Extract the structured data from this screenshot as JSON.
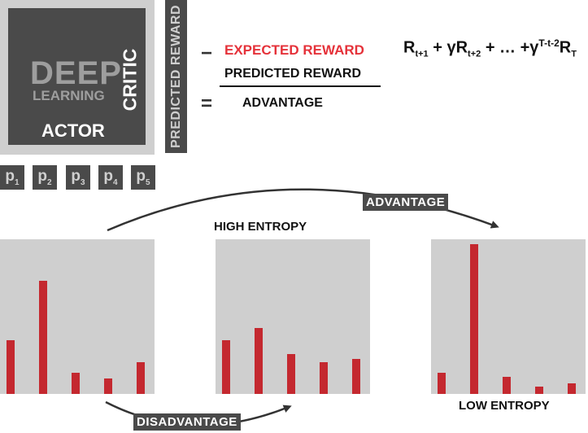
{
  "network": {
    "title_line1": "DEEP",
    "title_line2": "LEARNING",
    "actor": "ACTOR",
    "critic": "CRITIC",
    "predicted_reward_label": "PREDICTED REWARD"
  },
  "equation": {
    "minus": "−",
    "expected": "EXPECTED REWARD",
    "predicted": "PREDICTED REWARD",
    "equals": "=",
    "advantage": "ADVANTAGE",
    "formula": {
      "t1": "R",
      "s1": "t+1",
      "plus1": " + γR",
      "s2": "t+2",
      "mid": "+ … +γ",
      "sup": "T-t-2",
      "tail": "R",
      "s3": "T"
    }
  },
  "policy_labels": [
    {
      "p": "p",
      "i": "1"
    },
    {
      "p": "p",
      "i": "2"
    },
    {
      "p": "p",
      "i": "3"
    },
    {
      "p": "p",
      "i": "4"
    },
    {
      "p": "p",
      "i": "5"
    }
  ],
  "arrows": {
    "advantage": "ADVANTAGE",
    "disadvantage": "DISADVANTAGE"
  },
  "captions": {
    "high_entropy": "HIGH ENTROPY",
    "low_entropy": "LOW ENTROPY"
  },
  "colors": {
    "bar": "#c4282f",
    "panel": "#cfcfcf",
    "dark": "#4a4a4a",
    "expected": "#e5323a"
  },
  "chart_data": [
    {
      "type": "bar",
      "categories": [
        "p1",
        "p2",
        "p3",
        "p4",
        "p5"
      ],
      "values": [
        0.35,
        0.74,
        0.14,
        0.1,
        0.21
      ],
      "ylim": [
        0,
        1
      ]
    },
    {
      "type": "bar",
      "categories": [
        "p1",
        "p2",
        "p3",
        "p4",
        "p5"
      ],
      "values": [
        0.35,
        0.43,
        0.26,
        0.21,
        0.23
      ],
      "ylim": [
        0,
        1
      ],
      "title": "HIGH ENTROPY"
    },
    {
      "type": "bar",
      "categories": [
        "p1",
        "p2",
        "p3",
        "p4",
        "p5"
      ],
      "values": [
        0.14,
        0.98,
        0.11,
        0.05,
        0.07
      ],
      "ylim": [
        0,
        1
      ],
      "title": "LOW ENTROPY"
    }
  ]
}
